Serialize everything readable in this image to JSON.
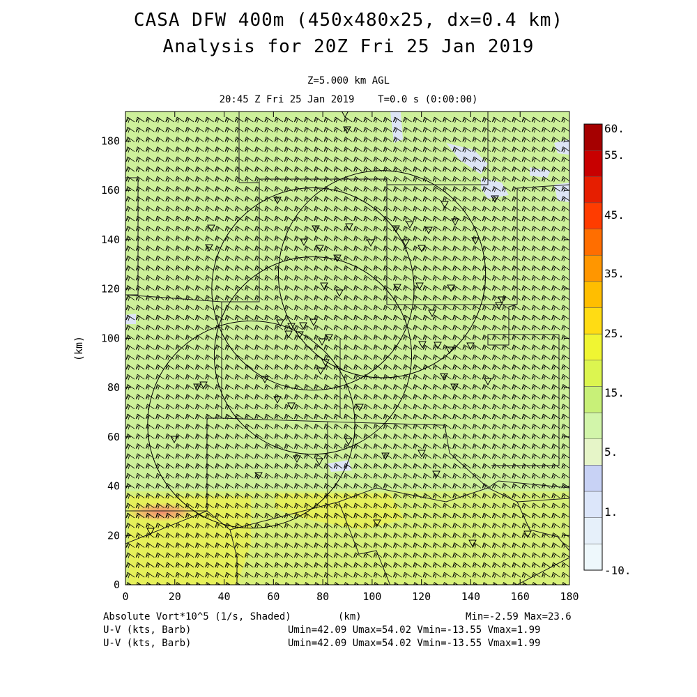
{
  "header": {
    "title_line1": "CASA DFW 400m (450x480x25, dx=0.4 km)",
    "title_line2": "Analysis for 20Z Fri 25 Jan 2019",
    "level": "Z=5.000 km AGL",
    "time": "20:45 Z Fri 25 Jan 2019    T=0.0 s (0:00:00)"
  },
  "axes": {
    "x_ticks": [
      "0",
      "20",
      "40",
      "60",
      "80",
      "100",
      "120",
      "140",
      "160",
      "180"
    ],
    "y_ticks": [
      "0",
      "20",
      "40",
      "60",
      "80",
      "100",
      "120",
      "140",
      "160",
      "180"
    ],
    "x_label": "(km)",
    "y_label": "(km)",
    "x_range": [
      0,
      180
    ],
    "y_range": [
      0,
      192
    ]
  },
  "colorbar": {
    "labels": [
      "60.",
      "55.",
      "45.",
      "35.",
      "25.",
      "15.",
      "5.",
      "1.",
      "-10."
    ],
    "colors": [
      "#a50000",
      "#c80000",
      "#e61e00",
      "#ff3c00",
      "#ff6e00",
      "#ff9600",
      "#ffbe00",
      "#ffdc14",
      "#f0f532",
      "#dcf550",
      "#c8f078",
      "#d2f5aa",
      "#e6f5c8",
      "#c8d2f5",
      "#dce6fa",
      "#e6f0fa",
      "#eef8fc"
    ]
  },
  "footer": {
    "field_label": "Absolute Vort*10^5 (1/s, Shaded)",
    "x_unit": "(km)",
    "min_max": "Min=-2.59 Max=23.6",
    "wind1_label": "U-V (kts, Barb)",
    "wind1_stats": "Umin=42.09 Umax=54.02 Vmin=-13.55 Vmax=1.99",
    "wind2_label": "U-V (kts, Barb)",
    "wind2_stats": "Umin=42.09 Umax=54.02 Vmin=-13.55 Vmax=1.99"
  },
  "field": {
    "field_colors": {
      "background": "#cdf09a",
      "south_band": "#d7f07a",
      "hot_core": "#e6f05a",
      "max_spot": "#f4a07a",
      "low_patch": "#dde4f6"
    },
    "radar_rings": [
      {
        "cx": 76,
        "cy": 120,
        "r": 41
      },
      {
        "cx": 104,
        "cy": 126,
        "r": 42
      },
      {
        "cx": 76,
        "cy": 93,
        "r": 40
      },
      {
        "cx": 51,
        "cy": 65,
        "r": 42
      }
    ]
  }
}
